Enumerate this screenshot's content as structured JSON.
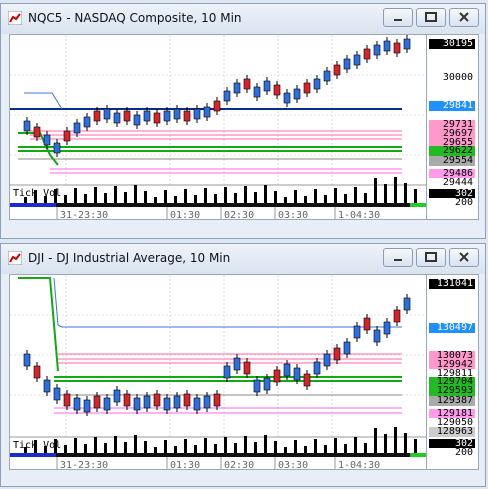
{
  "windows": [
    {
      "title": "NQC5 - NASDAQ Composite, 10 Min",
      "price_labels": [
        {
          "text": "30195",
          "bg": "#000000",
          "fg": "#ffffff"
        },
        {
          "text": "30000",
          "bg": "#ffffff",
          "fg": "#000000"
        },
        {
          "text": "29841",
          "bg": "#1e90ff",
          "fg": "#ffffff"
        },
        {
          "text": "29731",
          "bg": "#ff99cc",
          "fg": "#000000"
        },
        {
          "text": "29697",
          "bg": "#ff99cc",
          "fg": "#000000"
        },
        {
          "text": "29655",
          "bg": "#ff99cc",
          "fg": "#000000"
        },
        {
          "text": "29622",
          "bg": "#22bb22",
          "fg": "#000000"
        },
        {
          "text": "29554",
          "bg": "#aaaaaa",
          "fg": "#000000"
        },
        {
          "text": "29486",
          "bg": "#ff99ee",
          "fg": "#000000"
        },
        {
          "text": "29444",
          "bg": "#ffffff",
          "fg": "#000000"
        }
      ],
      "vol_labels": [
        {
          "text": "302",
          "bg": "#000000",
          "fg": "#ffffff"
        },
        {
          "text": "200",
          "bg": "#ffffff",
          "fg": "#000000"
        }
      ],
      "volume_label": "Tick Vol",
      "time_labels": [
        "31-23:30",
        "01:30",
        "02:30",
        "03:30",
        "1-04:30"
      ]
    },
    {
      "title": "DJI - DJ Industrial Average, 10 Min",
      "price_labels": [
        {
          "text": "131041",
          "bg": "#000000",
          "fg": "#ffffff"
        },
        {
          "text": "130497",
          "bg": "#1e90ff",
          "fg": "#ffffff"
        },
        {
          "text": "130073",
          "bg": "#ff99cc",
          "fg": "#000000"
        },
        {
          "text": "129942",
          "bg": "#ff99cc",
          "fg": "#000000"
        },
        {
          "text": "129811",
          "bg": "#ffffff",
          "fg": "#000000"
        },
        {
          "text": "129704",
          "bg": "#22bb22",
          "fg": "#000000"
        },
        {
          "text": "129593",
          "bg": "#22bb22",
          "fg": "#000000"
        },
        {
          "text": "129387",
          "bg": "#aaaaaa",
          "fg": "#000000"
        },
        {
          "text": "129181",
          "bg": "#ff99ee",
          "fg": "#000000"
        },
        {
          "text": "129050",
          "bg": "#ffffff",
          "fg": "#000000"
        },
        {
          "text": "128963",
          "bg": "#cccccc",
          "fg": "#000000"
        }
      ],
      "vol_labels": [
        {
          "text": "302",
          "bg": "#000000",
          "fg": "#ffffff"
        },
        {
          "text": "200",
          "bg": "#ffffff",
          "fg": "#000000"
        }
      ],
      "volume_label": "Tick Vol",
      "time_labels": [
        "31-23:30",
        "01:30",
        "02:30",
        "03:30",
        "1-04:30"
      ]
    }
  ]
}
